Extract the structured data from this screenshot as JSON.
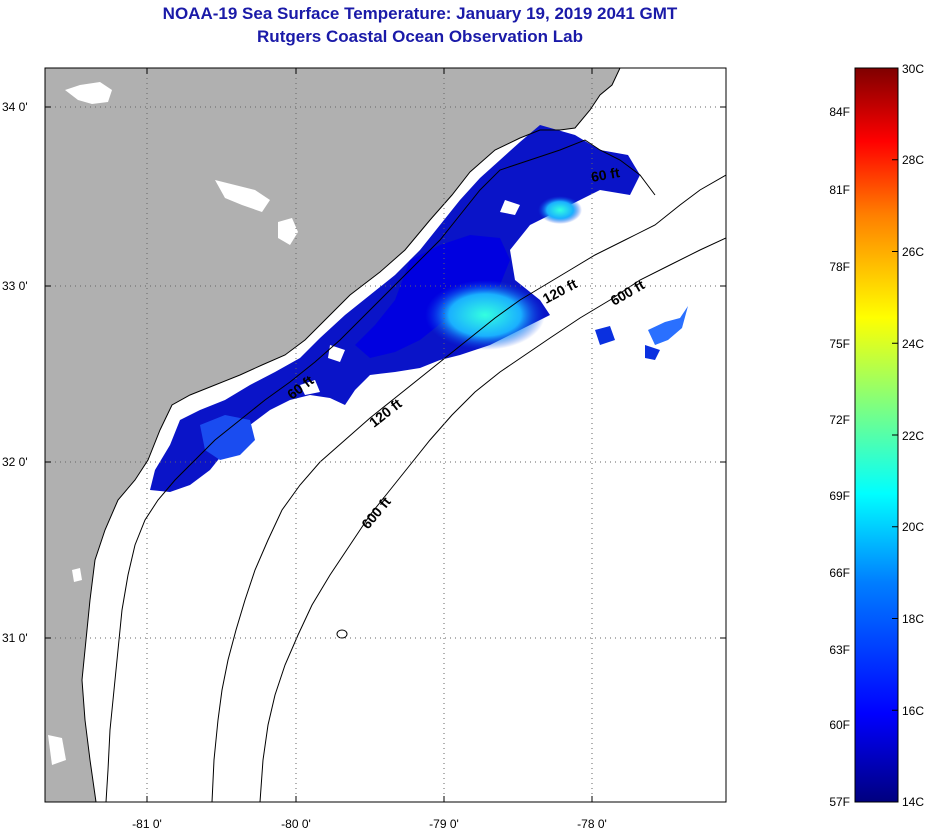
{
  "title": "NOAA-19 Sea Surface Temperature:  January 19, 2019 2041 GMT",
  "subtitle": "Rutgers Coastal Ocean Observation Lab",
  "axes": {
    "lon_ticks": [
      "-81 0'",
      "-80 0'",
      "-79 0'",
      "-78 0'"
    ],
    "lat_ticks": [
      "34 0'",
      "33 0'",
      "32 0'",
      "31 0'"
    ]
  },
  "contours": {
    "labels": [
      "600 ft",
      "120 ft",
      "60 ft",
      "120 ft",
      "600 ft",
      "60 ft"
    ]
  },
  "colorbar": {
    "fahrenheit": [
      "84F",
      "81F",
      "78F",
      "75F",
      "72F",
      "69F",
      "66F",
      "63F",
      "60F",
      "57F"
    ],
    "celsius": [
      "30C",
      "28C",
      "26C",
      "24C",
      "22C",
      "20C",
      "18C",
      "16C",
      "14C"
    ],
    "colors": [
      "#00007f",
      "#0000ff",
      "#007fff",
      "#00ffff",
      "#7fff7f",
      "#ffff00",
      "#ff7f00",
      "#ff0000",
      "#7f0000"
    ]
  },
  "colors": {
    "land": "#b0b0b0",
    "no_data": "#ffffff",
    "title": "#1a1aa8"
  }
}
